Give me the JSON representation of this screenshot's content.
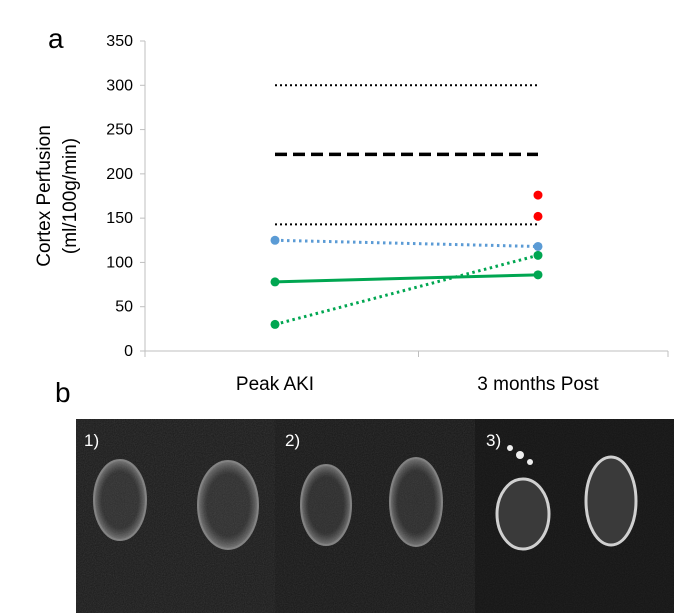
{
  "panels": {
    "a": "a",
    "b": "b"
  },
  "chart_data": {
    "type": "line",
    "categories": [
      "Peak AKI",
      "3 months Post"
    ],
    "ylabel_line1": "Cortex Perfusion",
    "ylabel_line2": "(ml/100g/min)",
    "ylim": [
      0,
      350
    ],
    "yticks": [
      0,
      50,
      100,
      150,
      200,
      250,
      300,
      350
    ],
    "grid": false,
    "series": [
      {
        "color": "#00a651",
        "style": "solid",
        "markers": true,
        "values": [
          78,
          86
        ]
      },
      {
        "color": "#00a651",
        "style": "dotted",
        "markers": true,
        "values": [
          30,
          108
        ]
      },
      {
        "color": "#5b9bd5",
        "style": "dotted",
        "markers": true,
        "values": [
          125,
          118
        ]
      }
    ],
    "extra_points": [
      {
        "color": "#ff0000",
        "category": "3 months Post",
        "value": 176
      },
      {
        "color": "#ff0000",
        "category": "3 months Post",
        "value": 152
      }
    ],
    "reference_lines": [
      {
        "value": 300,
        "style": "dotted",
        "color": "#000000"
      },
      {
        "value": 222,
        "style": "dashed",
        "color": "#000000"
      },
      {
        "value": 143,
        "style": "dotted",
        "color": "#000000"
      }
    ]
  },
  "images": {
    "labels": [
      "1)",
      "2)",
      "3)"
    ]
  }
}
